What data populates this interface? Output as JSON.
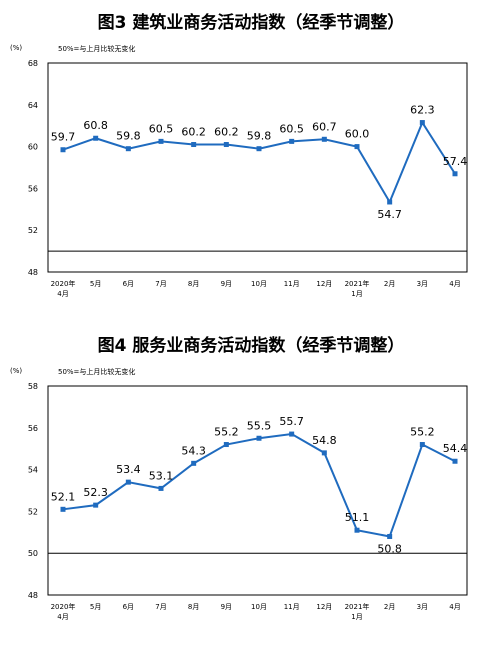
{
  "chart_data": [
    {
      "type": "line",
      "title": "图3 建筑业商务活动指数（经季节调整）",
      "unit": "(%)",
      "note": "50%=与上月比较无变化",
      "categories": [
        "2020年\n4月",
        "5月",
        "6月",
        "7月",
        "8月",
        "9月",
        "10月",
        "11月",
        "12月",
        "2021年\n1月",
        "2月",
        "3月",
        "4月"
      ],
      "values": [
        59.7,
        60.8,
        59.8,
        60.5,
        60.2,
        60.2,
        59.8,
        60.5,
        60.7,
        60.0,
        54.7,
        62.3,
        57.4
      ],
      "data_labels": [
        "59.7",
        "60.8",
        "59.8",
        "60.5",
        "60.2",
        "60.2",
        "59.8",
        "60.5",
        "60.7",
        "60.0",
        "54.7",
        "62.3",
        "57.4"
      ],
      "ylim": [
        48,
        68
      ],
      "yticks": [
        48,
        52,
        56,
        60,
        64,
        68
      ],
      "reference_line": 50,
      "color": "#1f6bbf"
    },
    {
      "type": "line",
      "title": "图4 服务业商务活动指数（经季节调整）",
      "unit": "(%)",
      "note": "50%=与上月比较无变化",
      "categories": [
        "2020年\n4月",
        "5月",
        "6月",
        "7月",
        "8月",
        "9月",
        "10月",
        "11月",
        "12月",
        "2021年\n1月",
        "2月",
        "3月",
        "4月"
      ],
      "values": [
        52.1,
        52.3,
        53.4,
        53.1,
        54.3,
        55.2,
        55.5,
        55.7,
        54.8,
        51.1,
        50.8,
        55.2,
        54.4
      ],
      "data_labels": [
        "52.1",
        "52.3",
        "53.4",
        "53.1",
        "54.3",
        "55.2",
        "55.5",
        "55.7",
        "54.8",
        "51.1",
        "50.8",
        "55.2",
        "54.4"
      ],
      "ylim": [
        48,
        58
      ],
      "yticks": [
        48,
        50,
        52,
        54,
        56,
        58
      ],
      "reference_line": 50,
      "color": "#1f6bbf"
    }
  ]
}
